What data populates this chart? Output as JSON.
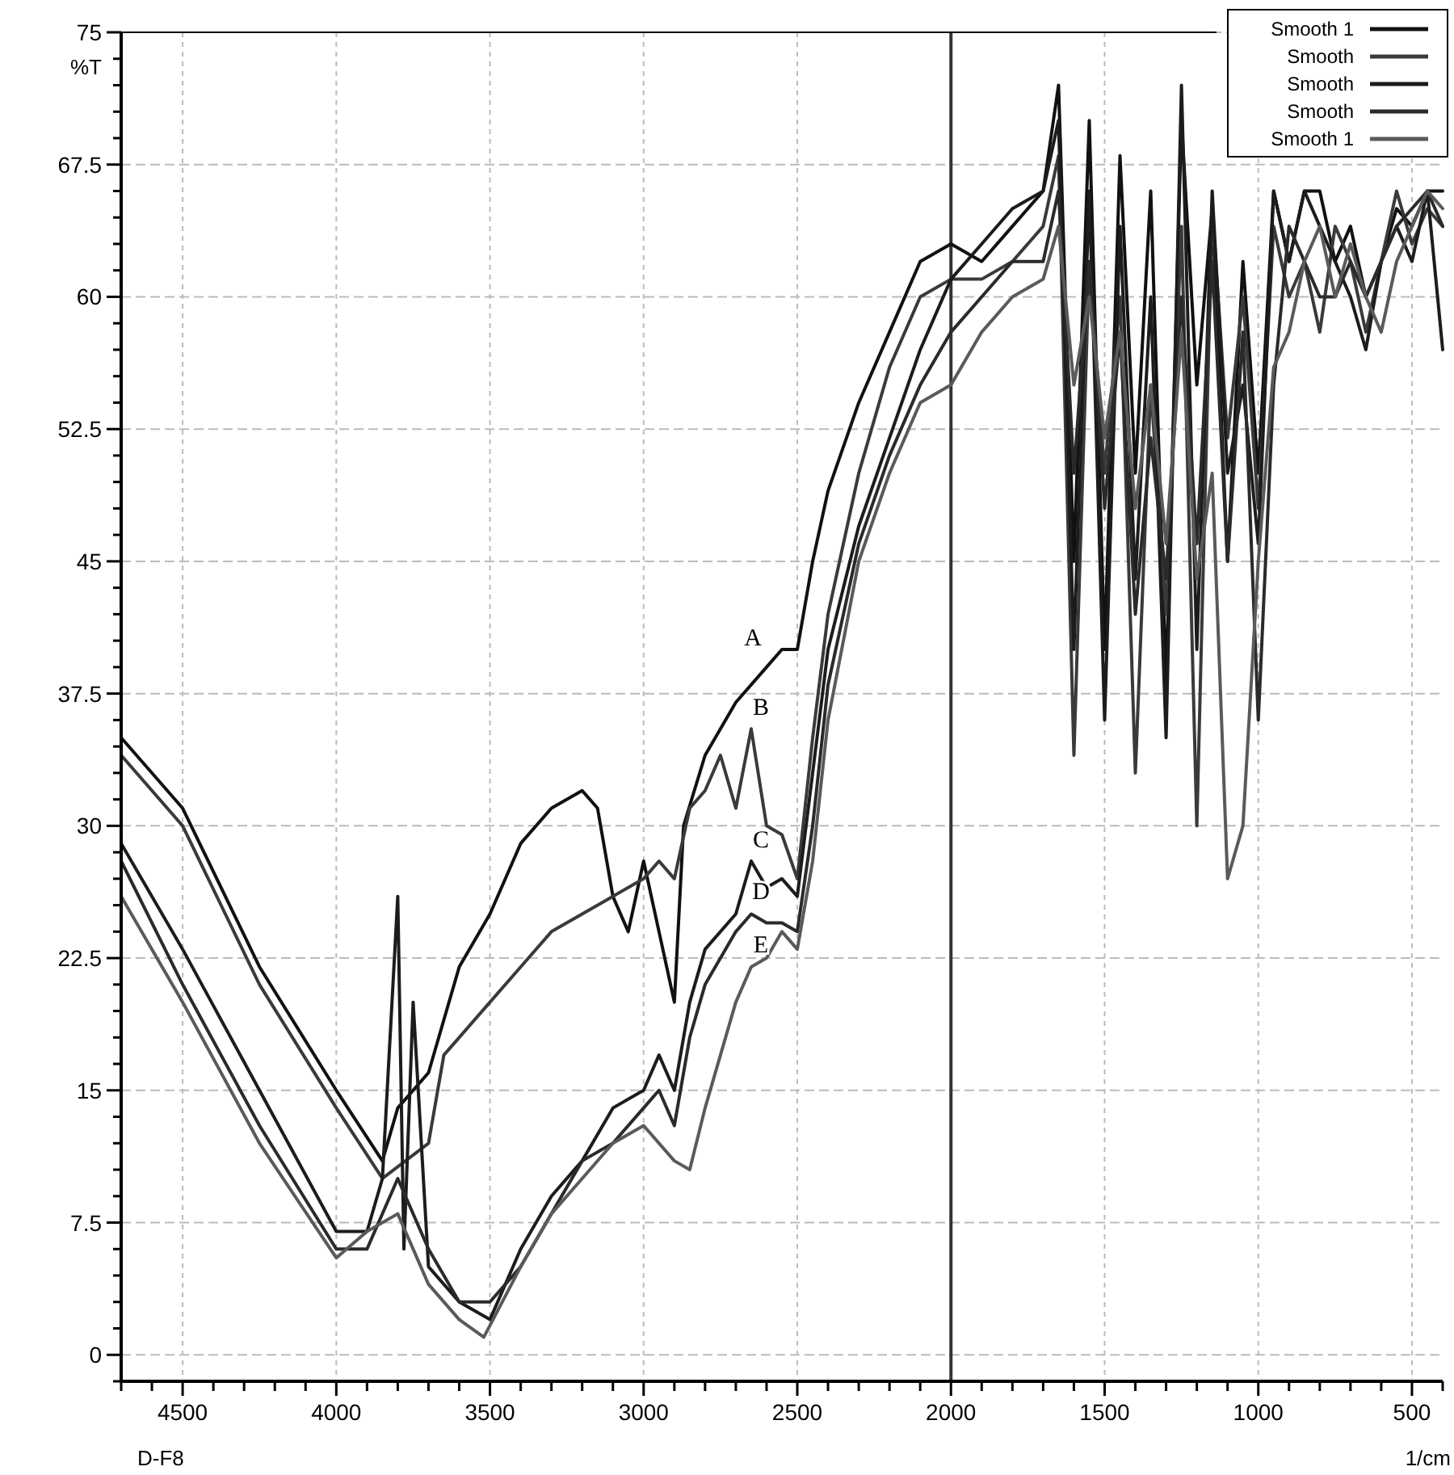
{
  "chart_data": {
    "type": "line",
    "xlabel": "1/cm",
    "ylabel": "%T",
    "xlim": [
      4700,
      400
    ],
    "ylim": [
      -1.5,
      75
    ],
    "xticks": [
      {
        "value": 4700,
        "label": null
      },
      {
        "value": 4600,
        "label": null
      },
      4500,
      {
        "value": 4400,
        "label": null
      },
      {
        "value": 4300,
        "label": null
      },
      {
        "value": 4200,
        "label": null
      },
      {
        "value": 4100,
        "label": null
      },
      4000,
      {
        "value": 3900,
        "label": null
      },
      {
        "value": 3800,
        "label": null
      },
      {
        "value": 3700,
        "label": null
      },
      {
        "value": 3600,
        "label": null
      },
      3500,
      {
        "value": 3400,
        "label": null
      },
      {
        "value": 3300,
        "label": null
      },
      {
        "value": 3200,
        "label": null
      },
      {
        "value": 3100,
        "label": null
      },
      3000,
      {
        "value": 2900,
        "label": null
      },
      {
        "value": 2800,
        "label": null
      },
      {
        "value": 2700,
        "label": null
      },
      {
        "value": 2600,
        "label": null
      },
      2500,
      {
        "value": 2400,
        "label": null
      },
      {
        "value": 2300,
        "label": null
      },
      {
        "value": 2200,
        "label": null
      },
      {
        "value": 2100,
        "label": null
      },
      2000,
      {
        "value": 1900,
        "label": null
      },
      {
        "value": 1800,
        "label": null
      },
      {
        "value": 1700,
        "label": null
      },
      {
        "value": 1600,
        "label": null
      },
      1500,
      {
        "value": 1400,
        "label": null
      },
      {
        "value": 1300,
        "label": null
      },
      {
        "value": 1200,
        "label": null
      },
      {
        "value": 1100,
        "label": null
      },
      1000,
      {
        "value": 900,
        "label": null
      },
      {
        "value": 800,
        "label": null
      },
      {
        "value": 700,
        "label": null
      },
      {
        "value": 600,
        "label": null
      },
      500,
      {
        "value": 400,
        "label": null
      }
    ],
    "yticks": [
      {
        "value": -1.5,
        "label": null
      },
      0,
      {
        "value": 1.5,
        "label": null
      },
      {
        "value": 3,
        "label": null
      },
      {
        "value": 4.5,
        "label": null
      },
      {
        "value": 6,
        "label": null
      },
      7.5,
      {
        "value": 9,
        "label": null
      },
      {
        "value": 10.5,
        "label": null
      },
      {
        "value": 12,
        "label": null
      },
      {
        "value": 13.5,
        "label": null
      },
      15,
      {
        "value": 16.5,
        "label": null
      },
      {
        "value": 18,
        "label": null
      },
      {
        "value": 19.5,
        "label": null
      },
      {
        "value": 21,
        "label": null
      },
      22.5,
      {
        "value": 24,
        "label": null
      },
      {
        "value": 25.5,
        "label": null
      },
      {
        "value": 27,
        "label": null
      },
      {
        "value": 28.5,
        "label": null
      },
      30,
      {
        "value": 31.5,
        "label": null
      },
      {
        "value": 33,
        "label": null
      },
      {
        "value": 34.5,
        "label": null
      },
      {
        "value": 36,
        "label": null
      },
      37.5,
      {
        "value": 39,
        "label": null
      },
      {
        "value": 40.5,
        "label": null
      },
      {
        "value": 42,
        "label": null
      },
      {
        "value": 43.5,
        "label": null
      },
      45,
      {
        "value": 46.5,
        "label": null
      },
      {
        "value": 48,
        "label": null
      },
      {
        "value": 49.5,
        "label": null
      },
      {
        "value": 51,
        "label": null
      },
      52.5,
      {
        "value": 54,
        "label": null
      },
      {
        "value": 55.5,
        "label": null
      },
      {
        "value": 57,
        "label": null
      },
      {
        "value": 58.5,
        "label": null
      },
      60,
      {
        "value": 61.5,
        "label": null
      },
      {
        "value": 63,
        "label": null
      },
      {
        "value": 64.5,
        "label": null
      },
      {
        "value": 66,
        "label": null
      },
      67.5,
      {
        "value": 69,
        "label": null
      },
      {
        "value": 70.5,
        "label": null
      },
      {
        "value": 72,
        "label": null
      },
      {
        "value": 73.5,
        "label": null
      },
      75
    ],
    "grid": true,
    "legend": "top right",
    "line_style": "solid",
    "ref_lines": [
      {
        "axis": "x",
        "value": 2000,
        "color": "#333333"
      }
    ],
    "annotations": [
      "A",
      "B",
      "C",
      "D",
      "E",
      "D-F8"
    ],
    "series": [
      {
        "name": "Smooth 1",
        "color": "#111111",
        "x": [
          4700,
          4500,
          4250,
          4000,
          3850,
          3800,
          3700,
          3600,
          3500,
          3400,
          3300,
          3200,
          3150,
          3100,
          3050,
          3000,
          2950,
          2900,
          2870,
          2800,
          2700,
          2600,
          2550,
          2500,
          2450,
          2400,
          2300,
          2200,
          2100,
          2000,
          1900,
          1800,
          1700,
          1650,
          1600,
          1550,
          1500,
          1450,
          1400,
          1350,
          1300,
          1250,
          1200,
          1150,
          1100,
          1050,
          1000,
          950,
          900,
          850,
          800,
          750,
          700,
          650,
          600,
          550,
          500,
          450,
          400
        ],
        "values": [
          35,
          31,
          22,
          15,
          11,
          14,
          16,
          22,
          25,
          29,
          31,
          32,
          31,
          26,
          24,
          28,
          24,
          20,
          30,
          34,
          37,
          39,
          40,
          40,
          45,
          49,
          54,
          58,
          62,
          63,
          62,
          64,
          66,
          72,
          45,
          70,
          40,
          68,
          50,
          66,
          38,
          70,
          55,
          65,
          45,
          62,
          50,
          66,
          62,
          66,
          66,
          62,
          64,
          60,
          62,
          65,
          64,
          66,
          66
        ]
      },
      {
        "name": "Smooth",
        "color": "#3a3a3a",
        "x": [
          4700,
          4500,
          4250,
          4000,
          3850,
          3700,
          3650,
          3600,
          3500,
          3400,
          3300,
          3200,
          3100,
          3000,
          2950,
          2900,
          2850,
          2800,
          2750,
          2700,
          2650,
          2600,
          2550,
          2500,
          2450,
          2400,
          2300,
          2200,
          2100,
          2000,
          1900,
          1800,
          1700,
          1650,
          1600,
          1550,
          1500,
          1450,
          1400,
          1350,
          1300,
          1250,
          1200,
          1150,
          1100,
          1050,
          1000,
          950,
          900,
          850,
          800,
          750,
          700,
          650,
          600,
          550,
          500,
          450,
          400
        ],
        "values": [
          34,
          30,
          21,
          14,
          10,
          12,
          17,
          18,
          20,
          22,
          24,
          25,
          26,
          27,
          28,
          27,
          31,
          32,
          34,
          31,
          35.5,
          30,
          29.5,
          27,
          35,
          42,
          50,
          56,
          60,
          61,
          61,
          62,
          64,
          68,
          34,
          62,
          50,
          60,
          33,
          55,
          42,
          64,
          30,
          65,
          52,
          60,
          48,
          64,
          60,
          62,
          58,
          64,
          62,
          58,
          62,
          66,
          63,
          65,
          64
        ]
      },
      {
        "name": "Smooth",
        "color": "#1c1c1c",
        "x": [
          4700,
          4500,
          4250,
          4000,
          3900,
          3850,
          3800,
          3780,
          3750,
          3700,
          3600,
          3500,
          3400,
          3300,
          3200,
          3100,
          3000,
          2950,
          2900,
          2850,
          2800,
          2700,
          2650,
          2600,
          2550,
          2500,
          2450,
          2400,
          2300,
          2200,
          2100,
          2000,
          1900,
          1800,
          1700,
          1650,
          1600,
          1550,
          1500,
          1450,
          1400,
          1350,
          1300,
          1250,
          1200,
          1150,
          1100,
          1050,
          1000,
          950,
          900,
          850,
          800,
          750,
          700,
          650,
          600,
          550,
          500,
          450,
          400
        ],
        "values": [
          29,
          23,
          15,
          7,
          7,
          10,
          26,
          6,
          20,
          5,
          3,
          2,
          6,
          9,
          11,
          14,
          15,
          17,
          15,
          20,
          23,
          25,
          28,
          26.5,
          27,
          26,
          33,
          40,
          47,
          52,
          57,
          61,
          63,
          65,
          66,
          70,
          40,
          66,
          36,
          64,
          44,
          60,
          35,
          72,
          40,
          66,
          50,
          55,
          46,
          66,
          62,
          66,
          64,
          62,
          60,
          57,
          62,
          64,
          62,
          66,
          57
        ]
      },
      {
        "name": "Smooth",
        "color": "#2a2a2a",
        "x": [
          4700,
          4500,
          4250,
          4000,
          3900,
          3800,
          3700,
          3600,
          3500,
          3400,
          3300,
          3200,
          3100,
          3000,
          2950,
          2900,
          2850,
          2800,
          2700,
          2650,
          2600,
          2550,
          2500,
          2450,
          2400,
          2300,
          2200,
          2100,
          2000,
          1900,
          1800,
          1700,
          1650,
          1600,
          1550,
          1500,
          1450,
          1400,
          1350,
          1300,
          1250,
          1200,
          1150,
          1100,
          1050,
          1000,
          950,
          900,
          850,
          800,
          750,
          700,
          650,
          600,
          550,
          500,
          450,
          400
        ],
        "values": [
          28,
          21,
          13,
          6,
          6,
          10,
          6,
          3,
          3,
          5,
          8,
          11,
          12,
          14,
          15,
          13,
          18,
          21,
          24,
          25,
          24.5,
          24.5,
          24,
          30,
          38,
          46,
          51,
          55,
          58,
          60,
          62,
          62,
          66,
          50,
          62,
          48,
          58,
          42,
          52,
          44,
          60,
          46,
          62,
          45,
          58,
          36,
          55,
          64,
          62,
          60,
          60,
          62,
          60,
          62,
          64,
          65,
          66,
          64
        ]
      },
      {
        "name": "Smooth 1",
        "color": "#5a5a5a",
        "x": [
          4700,
          4500,
          4250,
          4000,
          3900,
          3800,
          3700,
          3600,
          3520,
          3400,
          3300,
          3200,
          3100,
          3000,
          2900,
          2850,
          2800,
          2700,
          2650,
          2600,
          2550,
          2500,
          2450,
          2400,
          2300,
          2200,
          2100,
          2000,
          1900,
          1800,
          1700,
          1650,
          1600,
          1550,
          1500,
          1450,
          1400,
          1350,
          1300,
          1250,
          1200,
          1150,
          1100,
          1050,
          1000,
          950,
          900,
          850,
          800,
          750,
          700,
          650,
          600,
          550,
          500,
          450,
          400
        ],
        "values": [
          26,
          20,
          12,
          5.5,
          7,
          8,
          4,
          2,
          1,
          5,
          8,
          10,
          12,
          13,
          11,
          10.5,
          14,
          20,
          22,
          22.5,
          24,
          23,
          28,
          36,
          45,
          50,
          54,
          55,
          58,
          60,
          61,
          64,
          55,
          60,
          52,
          58,
          48,
          55,
          46,
          58,
          44,
          50,
          27,
          30,
          45,
          56,
          58,
          62,
          64,
          60,
          63,
          60,
          58,
          62,
          64,
          66,
          65
        ]
      }
    ]
  }
}
